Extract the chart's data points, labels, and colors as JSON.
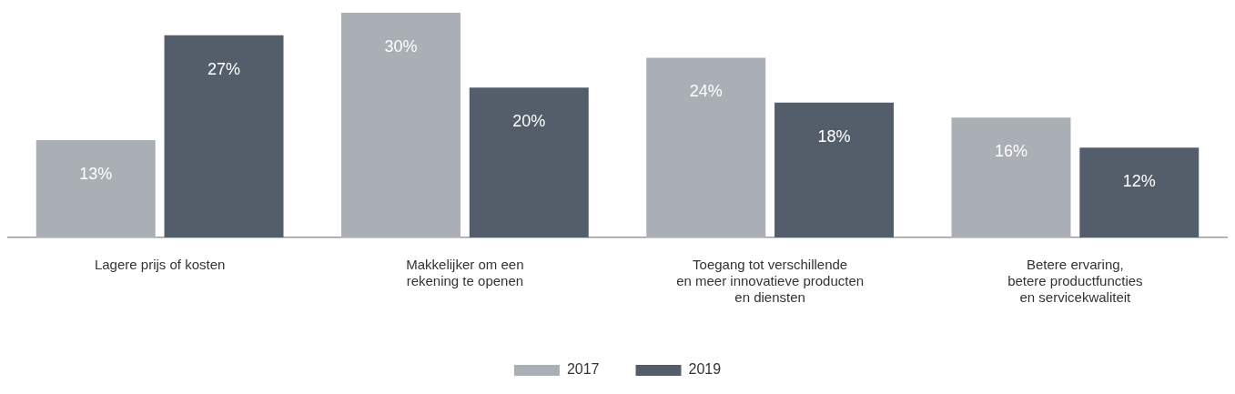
{
  "chart_data": {
    "type": "bar",
    "categories": [
      "Lagere prijs of kosten",
      "Makkelijker om een\nrekening te openen",
      "Toegang tot verschillende\nen meer innovatieve producten\nen diensten",
      "Betere ervaring,\nbetere productfuncties\nen servicekwaliteit"
    ],
    "series": [
      {
        "name": "2017",
        "color": "#a9afb5",
        "values": [
          13,
          30,
          24,
          16
        ],
        "value_labels": [
          "13%",
          "30%",
          "24%",
          "16%"
        ]
      },
      {
        "name": "2019",
        "color": "#545e6a",
        "values": [
          27,
          20,
          18,
          12
        ],
        "value_labels": [
          "27%",
          "20%",
          "18%",
          "12%"
        ]
      }
    ],
    "legend": "bottom",
    "grid": false
  }
}
